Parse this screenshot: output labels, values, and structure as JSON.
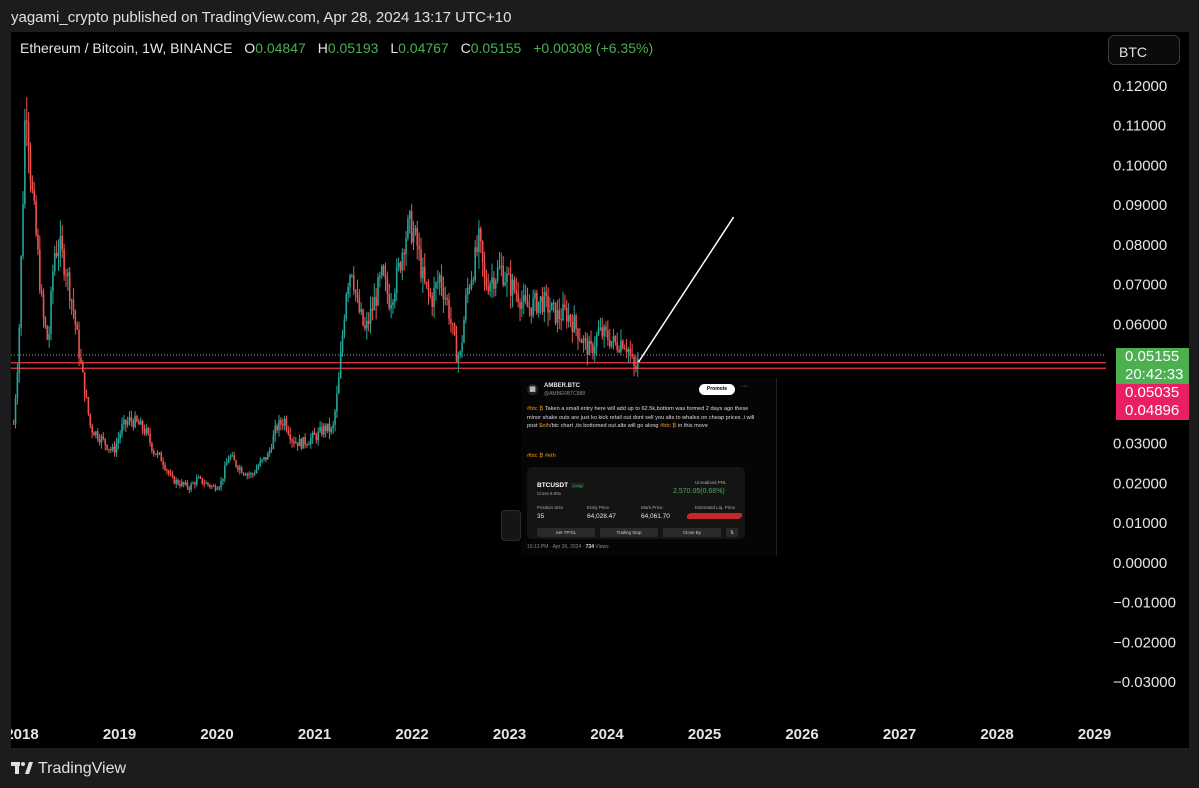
{
  "publisher": "yagami_crypto published on TradingView.com, Apr 28, 2024 13:17 UTC+10",
  "symbol_line": "Ethereum / Bitcoin, 1W, BINANCE",
  "ohlc": {
    "o_label": "O",
    "o_value": "0.04847",
    "h_label": "H",
    "h_value": "0.05193",
    "l_label": "L",
    "l_value": "0.04767",
    "c_label": "C",
    "c_value": "0.05155",
    "change": "+0.00308 (+6.35%)"
  },
  "currency_button": "BTC",
  "footer_brand": "TradingView",
  "colors": {
    "up": "#26a69a",
    "down": "#ef5350",
    "price_green": "#4caf50",
    "level_red": "#f23645",
    "level_pink": "#e91e63"
  },
  "price_tags": {
    "last_price": "0.05155",
    "countdown": "20:42:33",
    "level_1": "0.05035",
    "level_2": "0.04896"
  },
  "tweet": {
    "name": "AMBER.BTC",
    "handle": "@AMBERBTC888",
    "promote": "Promote",
    "more": "···",
    "text_prefix": "#btc",
    "text": "Taken a small entry here will add up to 62.5k,bottom was formed 2 days ago these minor shake outs are just ko kick retail out dont sell you alts to whales on cheap prices ,i will post",
    "text_eth": "$eth",
    "text_2": "/btc chart ,its bottomed out.alts will go along",
    "text_btc2": "#btc",
    "text_3": "in this move",
    "tags": "#btc ₿  #eth",
    "card": {
      "symbol": "BTCUSDT",
      "side": "Long",
      "cross": "Cross 6.00x",
      "upnl_label": "Unrealized PNL",
      "upnl_value": "2,570.05(0.68%)",
      "pos_label": "Position Size",
      "pos_value": "35",
      "entry_label": "Entry Price",
      "entry_value": "64,028.47",
      "mark_label": "Mark Price",
      "mark_value": "64,061.70",
      "liq_label": "Estimated Liq. Price",
      "btn1": "Set TP/SL",
      "btn2": "Trailing Stop",
      "btn3": "Close By"
    },
    "time": "10:13 PM · Apr 26, 2024 ·",
    "views": "734",
    "views_label": "Views"
  },
  "chart_data": {
    "type": "candlestick",
    "timeframe": "1W",
    "x_axis_labels": [
      "2018",
      "2019",
      "2020",
      "2021",
      "2022",
      "2023",
      "2024",
      "2025",
      "2026",
      "2027",
      "2028",
      "2029"
    ],
    "y_axis_labels": [
      "0.12000",
      "0.11000",
      "0.10000",
      "0.09000",
      "0.08000",
      "0.07000",
      "0.06000",
      "0.03000",
      "0.02000",
      "0.01000",
      "0.00000",
      "−0.01000",
      "−0.02000",
      "−0.03000"
    ],
    "ylim": [
      -0.034,
      0.1235
    ],
    "price_path": [
      [
        "2017-12-01",
        0.035
      ],
      [
        "2017-12-20",
        0.055
      ],
      [
        "2018-01-08",
        0.1
      ],
      [
        "2018-01-15",
        0.12
      ],
      [
        "2018-02-05",
        0.095
      ],
      [
        "2018-02-26",
        0.08
      ],
      [
        "2018-03-20",
        0.062
      ],
      [
        "2018-04-10",
        0.055
      ],
      [
        "2018-05-01",
        0.078
      ],
      [
        "2018-05-20",
        0.08
      ],
      [
        "2018-06-15",
        0.074
      ],
      [
        "2018-07-10",
        0.065
      ],
      [
        "2018-08-01",
        0.054
      ],
      [
        "2018-08-20",
        0.045
      ],
      [
        "2018-09-15",
        0.034
      ],
      [
        "2018-10-15",
        0.032
      ],
      [
        "2018-11-10",
        0.03
      ],
      [
        "2018-12-10",
        0.028
      ],
      [
        "2019-01-10",
        0.034
      ],
      [
        "2019-02-10",
        0.036
      ],
      [
        "2019-03-10",
        0.035
      ],
      [
        "2019-04-10",
        0.033
      ],
      [
        "2019-05-10",
        0.028
      ],
      [
        "2019-06-10",
        0.026
      ],
      [
        "2019-07-15",
        0.021
      ],
      [
        "2019-08-15",
        0.02
      ],
      [
        "2019-09-20",
        0.019
      ],
      [
        "2019-10-20",
        0.021
      ],
      [
        "2019-11-20",
        0.02
      ],
      [
        "2019-12-20",
        0.019
      ],
      [
        "2020-01-15",
        0.02
      ],
      [
        "2020-02-15",
        0.027
      ],
      [
        "2020-03-10",
        0.025
      ],
      [
        "2020-04-10",
        0.023
      ],
      [
        "2020-05-10",
        0.022
      ],
      [
        "2020-06-10",
        0.025
      ],
      [
        "2020-07-10",
        0.027
      ],
      [
        "2020-08-10",
        0.034
      ],
      [
        "2020-09-10",
        0.036
      ],
      [
        "2020-10-10",
        0.031
      ],
      [
        "2020-11-10",
        0.03
      ],
      [
        "2020-12-10",
        0.031
      ],
      [
        "2021-01-10",
        0.032
      ],
      [
        "2021-02-10",
        0.034
      ],
      [
        "2021-03-10",
        0.033
      ],
      [
        "2021-04-01",
        0.045
      ],
      [
        "2021-05-01",
        0.07
      ],
      [
        "2021-05-20",
        0.075
      ],
      [
        "2021-06-10",
        0.065
      ],
      [
        "2021-07-10",
        0.058
      ],
      [
        "2021-08-10",
        0.065
      ],
      [
        "2021-09-10",
        0.072
      ],
      [
        "2021-10-10",
        0.066
      ],
      [
        "2021-11-10",
        0.073
      ],
      [
        "2021-12-05",
        0.082
      ],
      [
        "2021-12-25",
        0.085
      ],
      [
        "2022-01-20",
        0.08
      ],
      [
        "2022-02-15",
        0.07
      ],
      [
        "2022-03-15",
        0.066
      ],
      [
        "2022-04-15",
        0.072
      ],
      [
        "2022-05-15",
        0.065
      ],
      [
        "2022-06-15",
        0.053
      ],
      [
        "2022-07-01",
        0.052
      ],
      [
        "2022-07-25",
        0.068
      ],
      [
        "2022-08-25",
        0.076
      ],
      [
        "2022-09-10",
        0.081
      ],
      [
        "2022-10-01",
        0.07
      ],
      [
        "2022-11-01",
        0.072
      ],
      [
        "2022-12-01",
        0.074
      ],
      [
        "2023-01-01",
        0.07
      ],
      [
        "2023-02-01",
        0.068
      ],
      [
        "2023-03-01",
        0.064
      ],
      [
        "2023-04-01",
        0.065
      ],
      [
        "2023-05-01",
        0.066
      ],
      [
        "2023-06-01",
        0.064
      ],
      [
        "2023-07-01",
        0.062
      ],
      [
        "2023-08-01",
        0.063
      ],
      [
        "2023-09-01",
        0.06
      ],
      [
        "2023-10-01",
        0.056
      ],
      [
        "2023-11-01",
        0.053
      ],
      [
        "2023-12-01",
        0.058
      ],
      [
        "2024-01-01",
        0.057
      ],
      [
        "2024-02-01",
        0.055
      ],
      [
        "2024-03-01",
        0.056
      ],
      [
        "2024-03-20",
        0.054
      ],
      [
        "2024-04-15",
        0.048
      ],
      [
        "2024-04-28",
        0.05155
      ]
    ],
    "projection_line": {
      "from": [
        "2024-04-28",
        0.0505
      ],
      "to": [
        "2025-04-20",
        0.087
      ]
    },
    "horizontal_levels": [
      0.05035,
      0.04896,
      0.05155
    ],
    "last_close": 0.05155
  }
}
